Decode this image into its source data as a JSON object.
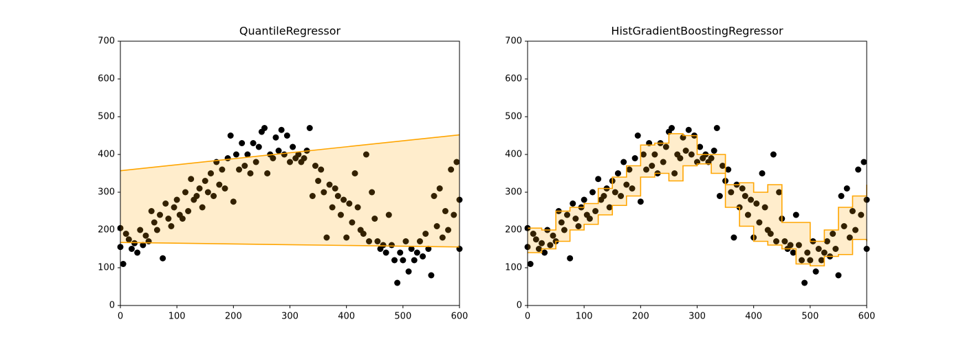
{
  "chart_data": [
    {
      "type": "scatter",
      "title": "QuantileRegressor",
      "xlim": [
        0,
        600
      ],
      "ylim": [
        0,
        700
      ],
      "xticks": [
        0,
        100,
        200,
        300,
        400,
        500,
        600
      ],
      "yticks": [
        0,
        100,
        200,
        300,
        400,
        500,
        600,
        700
      ],
      "points": {
        "color": "#000000",
        "x": [
          0,
          0,
          5,
          10,
          15,
          20,
          25,
          30,
          35,
          40,
          45,
          50,
          55,
          60,
          65,
          70,
          75,
          80,
          85,
          90,
          95,
          100,
          105,
          110,
          115,
          120,
          125,
          130,
          135,
          140,
          145,
          150,
          155,
          160,
          165,
          170,
          175,
          180,
          185,
          190,
          195,
          200,
          205,
          210,
          215,
          220,
          225,
          230,
          235,
          240,
          245,
          250,
          255,
          260,
          265,
          270,
          275,
          280,
          285,
          290,
          295,
          300,
          305,
          310,
          315,
          320,
          325,
          330,
          335,
          340,
          345,
          350,
          355,
          360,
          365,
          370,
          375,
          380,
          385,
          390,
          395,
          400,
          405,
          410,
          415,
          420,
          425,
          430,
          435,
          440,
          445,
          450,
          455,
          460,
          465,
          470,
          475,
          480,
          485,
          490,
          495,
          500,
          505,
          510,
          515,
          520,
          525,
          530,
          535,
          540,
          545,
          550,
          555,
          560,
          565,
          570,
          575,
          580,
          585,
          590,
          595,
          600,
          600
        ],
        "y": [
          205,
          155,
          110,
          190,
          175,
          150,
          165,
          140,
          200,
          160,
          185,
          170,
          250,
          220,
          200,
          240,
          125,
          270,
          230,
          210,
          260,
          280,
          240,
          230,
          300,
          250,
          335,
          280,
          290,
          310,
          260,
          330,
          300,
          350,
          290,
          380,
          320,
          360,
          310,
          390,
          450,
          275,
          400,
          360,
          430,
          370,
          400,
          350,
          430,
          380,
          420,
          460,
          470,
          350,
          400,
          390,
          445,
          410,
          465,
          400,
          450,
          380,
          420,
          390,
          400,
          380,
          390,
          410,
          470,
          290,
          370,
          330,
          360,
          300,
          180,
          320,
          260,
          310,
          290,
          240,
          280,
          180,
          270,
          220,
          350,
          260,
          200,
          190,
          400,
          170,
          300,
          230,
          170,
          150,
          160,
          140,
          240,
          160,
          120,
          60,
          140,
          120,
          170,
          90,
          150,
          120,
          140,
          170,
          130,
          190,
          150,
          80,
          290,
          210,
          310,
          180,
          250,
          200,
          360,
          240,
          380,
          280,
          150
        ]
      },
      "band": {
        "color": "orange",
        "alpha": 0.2,
        "step": false,
        "x": [
          0,
          600
        ],
        "lower": [
          167,
          155
        ],
        "upper": [
          357,
          452
        ]
      }
    },
    {
      "type": "scatter",
      "title": "HistGradientBoostingRegressor",
      "xlim": [
        0,
        600
      ],
      "ylim": [
        0,
        700
      ],
      "xticks": [
        0,
        100,
        200,
        300,
        400,
        500,
        600
      ],
      "yticks": [
        0,
        100,
        200,
        300,
        400,
        500,
        600,
        700
      ],
      "points": {
        "color": "#000000",
        "x": [
          0,
          0,
          5,
          10,
          15,
          20,
          25,
          30,
          35,
          40,
          45,
          50,
          55,
          60,
          65,
          70,
          75,
          80,
          85,
          90,
          95,
          100,
          105,
          110,
          115,
          120,
          125,
          130,
          135,
          140,
          145,
          150,
          155,
          160,
          165,
          170,
          175,
          180,
          185,
          190,
          195,
          200,
          205,
          210,
          215,
          220,
          225,
          230,
          235,
          240,
          245,
          250,
          255,
          260,
          265,
          270,
          275,
          280,
          285,
          290,
          295,
          300,
          305,
          310,
          315,
          320,
          325,
          330,
          335,
          340,
          345,
          350,
          355,
          360,
          365,
          370,
          375,
          380,
          385,
          390,
          395,
          400,
          405,
          410,
          415,
          420,
          425,
          430,
          435,
          440,
          445,
          450,
          455,
          460,
          465,
          470,
          475,
          480,
          485,
          490,
          495,
          500,
          505,
          510,
          515,
          520,
          525,
          530,
          535,
          540,
          545,
          550,
          555,
          560,
          565,
          570,
          575,
          580,
          585,
          590,
          595,
          600,
          600
        ],
        "y": [
          205,
          155,
          110,
          190,
          175,
          150,
          165,
          140,
          200,
          160,
          185,
          170,
          250,
          220,
          200,
          240,
          125,
          270,
          230,
          210,
          260,
          280,
          240,
          230,
          300,
          250,
          335,
          280,
          290,
          310,
          260,
          330,
          300,
          350,
          290,
          380,
          320,
          360,
          310,
          390,
          450,
          275,
          400,
          360,
          430,
          370,
          400,
          350,
          430,
          380,
          420,
          460,
          470,
          350,
          400,
          390,
          445,
          410,
          465,
          400,
          450,
          380,
          420,
          390,
          400,
          380,
          390,
          410,
          470,
          290,
          370,
          330,
          360,
          300,
          180,
          320,
          260,
          310,
          290,
          240,
          280,
          180,
          270,
          220,
          350,
          260,
          200,
          190,
          400,
          170,
          300,
          230,
          170,
          150,
          160,
          140,
          240,
          160,
          120,
          60,
          140,
          120,
          170,
          90,
          150,
          120,
          140,
          170,
          130,
          190,
          150,
          80,
          290,
          210,
          310,
          180,
          250,
          200,
          360,
          240,
          380,
          280,
          150
        ]
      },
      "band": {
        "color": "orange",
        "alpha": 0.2,
        "step": true,
        "x": [
          0,
          25,
          50,
          75,
          100,
          125,
          150,
          175,
          200,
          225,
          250,
          275,
          300,
          325,
          350,
          375,
          400,
          425,
          450,
          475,
          500,
          525,
          550,
          575,
          600
        ],
        "lower": [
          140,
          150,
          170,
          200,
          215,
          240,
          265,
          290,
          340,
          350,
          330,
          370,
          375,
          350,
          260,
          210,
          170,
          160,
          150,
          110,
          105,
          130,
          135,
          175,
          170
        ],
        "upper": [
          205,
          200,
          250,
          260,
          270,
          310,
          340,
          370,
          425,
          430,
          455,
          450,
          400,
          400,
          320,
          325,
          300,
          320,
          220,
          220,
          170,
          200,
          260,
          290,
          320
        ]
      }
    }
  ]
}
